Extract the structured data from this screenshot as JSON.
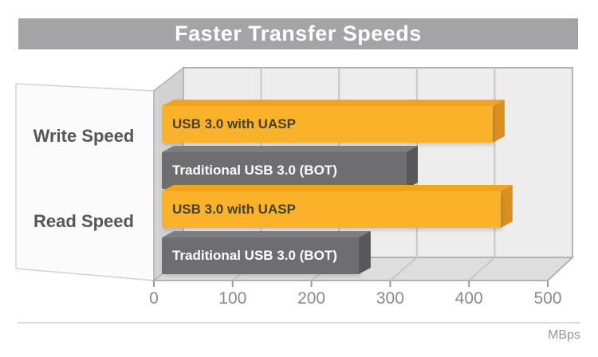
{
  "title_bar": {
    "text": "Faster Transfer Speeds",
    "bg_color": "#a4a4a6",
    "text_color": "#ffffff"
  },
  "chart_data": {
    "type": "bar",
    "orientation": "horizontal",
    "style": "3d",
    "title": "Faster Transfer Speeds",
    "categories": [
      "Write Speed",
      "Read Speed"
    ],
    "series": [
      {
        "name": "USB 3.0 with UASP",
        "values": [
          430,
          440
        ],
        "color": "#f9b22a",
        "color_top": "#f2a41d",
        "color_side": "#db8f1e",
        "label_color": "#46412f"
      },
      {
        "name": "Traditional USB 3.0 (BOT)",
        "values": [
          320,
          260
        ],
        "color": "#6e6e71",
        "color_top": "#7e7e81",
        "color_side": "#58585b",
        "label_color": "#ffffff"
      }
    ],
    "x_ticks": [
      0,
      100,
      200,
      300,
      400,
      500
    ],
    "xlim": [
      0,
      500
    ],
    "unit": "MBps",
    "grid": true,
    "legend": "labels-on-bars",
    "wall_color": "#ededee",
    "gridline_color": "#c6c6c8",
    "edge_color": "#b2b2b4",
    "floor_color": "#dededf",
    "side_wall_color": "#d2d2d4",
    "panel_color": "#fbfbfc"
  }
}
